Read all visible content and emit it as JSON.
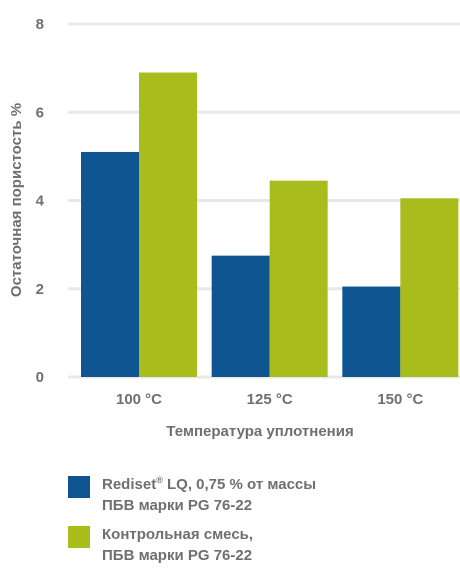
{
  "chart_data": {
    "type": "bar",
    "categories": [
      "100 °C",
      "125 °C",
      "150 °C"
    ],
    "series": [
      {
        "name": "Rediset® LQ, 0,75 % от массы ПБВ марки PG 76-22",
        "values": [
          5.1,
          2.75,
          2.05
        ],
        "color": "#0f5592"
      },
      {
        "name": "Контрольная смесь, ПБВ марки PG 76-22",
        "values": [
          6.9,
          4.45,
          4.05
        ],
        "color": "#a8bd1c"
      }
    ],
    "xlabel": "Температура уплотнения",
    "ylabel": "Остаточная пористость %",
    "ylim": [
      0,
      8
    ],
    "yticks": [
      "0",
      "2",
      "4",
      "6",
      "8"
    ],
    "grid": true,
    "legend_position": "bottom"
  },
  "legend": [
    {
      "line1_main": "Rediset",
      "line1_sup": "®",
      "line1_rest": " LQ, 0,75 % от массы",
      "line2": "ПБВ марки PG 76-22"
    },
    {
      "line1_main": "Контрольная смесь,",
      "line1_sup": "",
      "line1_rest": "",
      "line2": "ПБВ марки PG 76-22"
    }
  ]
}
